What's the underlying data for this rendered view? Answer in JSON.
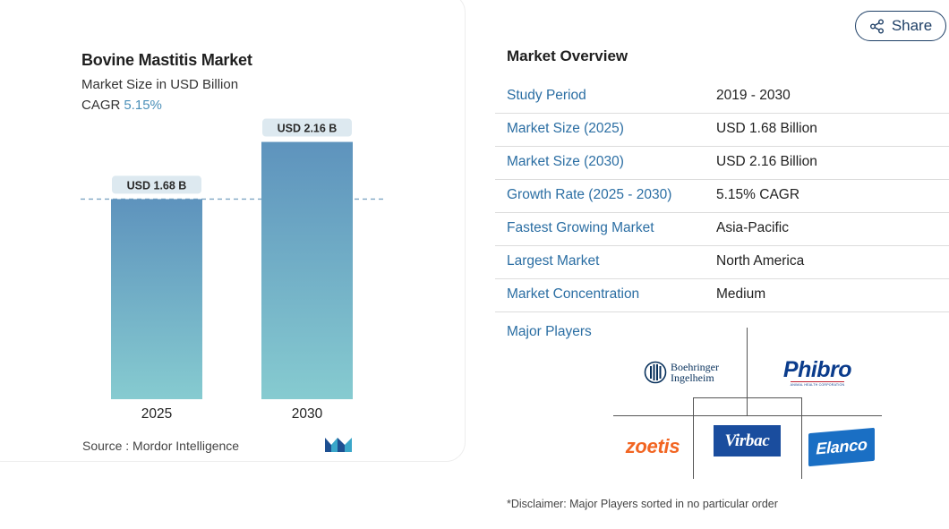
{
  "chart_data": {
    "type": "bar",
    "title": "Bovine Mastitis Market",
    "subtitle": "Market Size in USD Billion",
    "cagr_label": "CAGR",
    "cagr_value": "5.15%",
    "categories": [
      "2025",
      "2030"
    ],
    "values": [
      1.68,
      2.16
    ],
    "data_labels": [
      "USD 1.68 B",
      "USD 2.16 B"
    ],
    "ylim": [
      0,
      2.6
    ],
    "grid": false,
    "reference_line": 1.68,
    "colors": {
      "bar_top": "#5e93bd",
      "bar_bottom": "#86cbd0",
      "label_bg": "#dde9f0",
      "reference_line": "#7fa6c4"
    }
  },
  "source": "Source :  Mordor Intelligence",
  "source_logo_icon": "mordor-intelligence-logo",
  "share": {
    "label": "Share",
    "icon": "share-icon"
  },
  "overview": {
    "title": "Market Overview",
    "rows": [
      {
        "key": "Study Period",
        "value": "2019 - 2030"
      },
      {
        "key": "Market Size (2025)",
        "value": "USD 1.68 Billion"
      },
      {
        "key": "Market Size (2030)",
        "value": "USD 2.16 Billion"
      },
      {
        "key": "Growth Rate (2025 - 2030)",
        "value": "5.15% CAGR"
      },
      {
        "key": "Fastest Growing Market",
        "value": "Asia-Pacific"
      },
      {
        "key": "Largest Market",
        "value": "North America"
      },
      {
        "key": "Market Concentration",
        "value": "Medium"
      }
    ],
    "players_label": "Major Players",
    "players": [
      {
        "name": "Boehringer Ingelheim",
        "line1": "Boehringer",
        "line2": "Ingelheim",
        "color": "#08315c"
      },
      {
        "name": "Phibro",
        "sub": "ANIMAL HEALTH CORPORATION",
        "color": "#0b3c8c"
      },
      {
        "name": "zoetis",
        "color": "#f26522"
      },
      {
        "name": "Virbac",
        "color": "#1a4d9e"
      },
      {
        "name": "Elanco",
        "color": "#1a6fc4"
      }
    ],
    "disclaimer": "*Disclaimer: Major Players sorted in no particular order"
  }
}
